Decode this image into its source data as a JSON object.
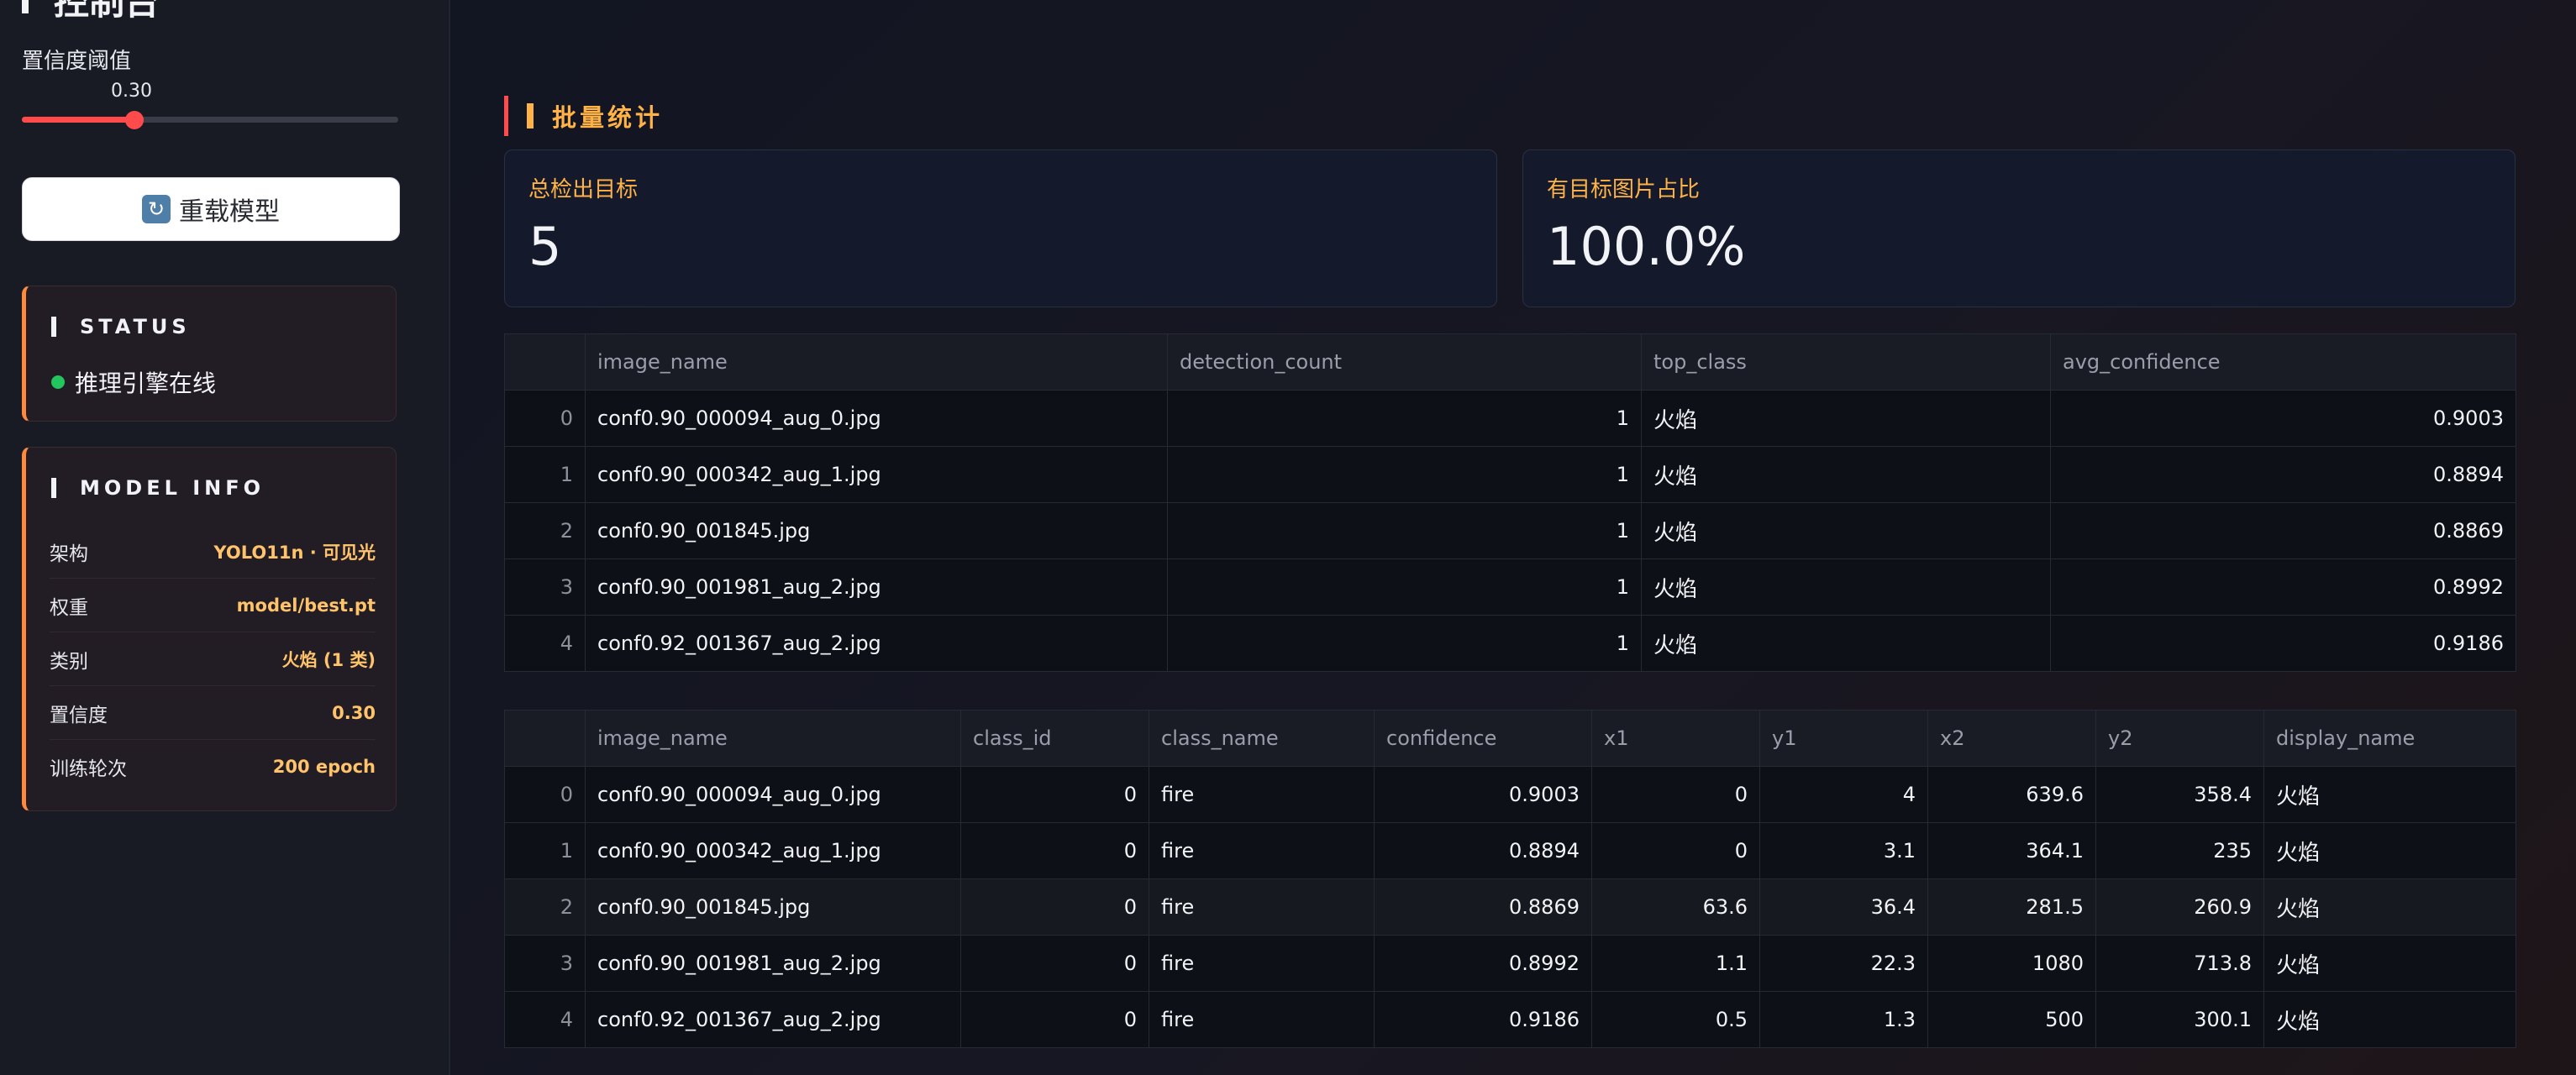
{
  "sidebar": {
    "title": "控制台",
    "slider": {
      "label": "置信度阈值",
      "value_text": "0.30",
      "value": 0.3
    },
    "reload_button": "重载模型",
    "status": {
      "heading": "STATUS",
      "text": "推理引擎在线"
    },
    "model_info": {
      "heading": "MODEL INFO",
      "rows": [
        {
          "key": "架构",
          "value": "YOLO11n · 可见光"
        },
        {
          "key": "权重",
          "value": "model/best.pt"
        },
        {
          "key": "类别",
          "value": "火焰 (1 类)"
        },
        {
          "key": "置信度",
          "value": "0.30"
        },
        {
          "key": "训练轮次",
          "value": "200 epoch"
        }
      ]
    }
  },
  "main": {
    "section_title": "批量统计",
    "metrics": [
      {
        "label": "总检出目标",
        "value": "5"
      },
      {
        "label": "有目标图片占比",
        "value": "100.0%"
      }
    ],
    "summary_table": {
      "columns": [
        "",
        "image_name",
        "detection_count",
        "top_class",
        "avg_confidence"
      ],
      "rows": [
        [
          "0",
          "conf0.90_000094_aug_0.jpg",
          "1",
          "火焰",
          "0.9003"
        ],
        [
          "1",
          "conf0.90_000342_aug_1.jpg",
          "1",
          "火焰",
          "0.8894"
        ],
        [
          "2",
          "conf0.90_001845.jpg",
          "1",
          "火焰",
          "0.8869"
        ],
        [
          "3",
          "conf0.90_001981_aug_2.jpg",
          "1",
          "火焰",
          "0.8992"
        ],
        [
          "4",
          "conf0.92_001367_aug_2.jpg",
          "1",
          "火焰",
          "0.9186"
        ]
      ]
    },
    "detail_table": {
      "columns": [
        "",
        "image_name",
        "class_id",
        "class_name",
        "confidence",
        "x1",
        "y1",
        "x2",
        "y2",
        "display_name"
      ],
      "rows": [
        [
          "0",
          "conf0.90_000094_aug_0.jpg",
          "0",
          "fire",
          "0.9003",
          "0",
          "4",
          "639.6",
          "358.4",
          "火焰"
        ],
        [
          "1",
          "conf0.90_000342_aug_1.jpg",
          "0",
          "fire",
          "0.8894",
          "0",
          "3.1",
          "364.1",
          "235",
          "火焰"
        ],
        [
          "2",
          "conf0.90_001845.jpg",
          "0",
          "fire",
          "0.8869",
          "63.6",
          "36.4",
          "281.5",
          "260.9",
          "火焰"
        ],
        [
          "3",
          "conf0.90_001981_aug_2.jpg",
          "0",
          "fire",
          "0.8992",
          "1.1",
          "22.3",
          "1080",
          "713.8",
          "火焰"
        ],
        [
          "4",
          "conf0.92_001367_aug_2.jpg",
          "0",
          "fire",
          "0.9186",
          "0.5",
          "1.3",
          "500",
          "300.1",
          "火焰"
        ]
      ]
    }
  },
  "colors": {
    "accent_red": "#ff4b4b",
    "accent_orange": "#ffb347",
    "status_green": "#22c55e",
    "info_value": "#ffc46b"
  }
}
